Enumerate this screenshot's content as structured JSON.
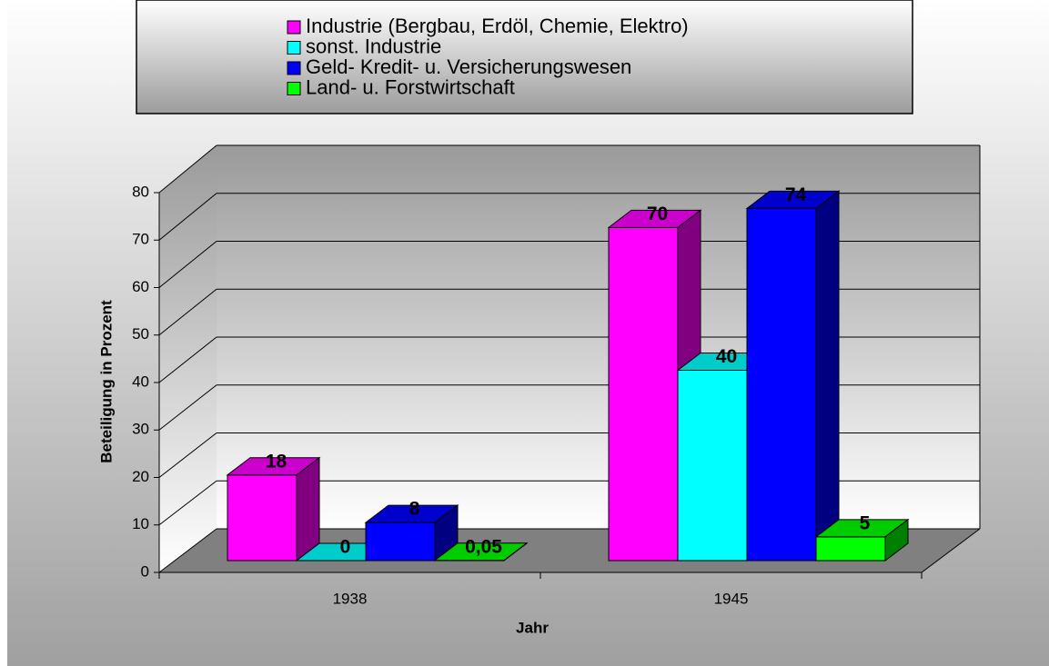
{
  "chart_data": {
    "type": "bar3d",
    "categories": [
      "1938",
      "1945"
    ],
    "series": [
      {
        "name": "Industrie (Bergbau, Erdöl, Chemie, Elektro)",
        "color": "#ff00ff",
        "values": [
          18,
          70
        ]
      },
      {
        "name": "sonst. Industrie",
        "color": "#00ffff",
        "values": [
          0,
          40
        ]
      },
      {
        "name": "Geld- Kredit- u. Versicherungswesen",
        "color": "#0000ff",
        "values": [
          8,
          74
        ]
      },
      {
        "name": "Land- u. Forstwirtschaft",
        "color": "#00ff00",
        "values": [
          0.05,
          5
        ],
        "value_labels": [
          "0,05",
          "5"
        ]
      }
    ],
    "ylim": [
      0,
      80
    ],
    "yticks": [
      0,
      10,
      20,
      30,
      40,
      50,
      60,
      70,
      80
    ],
    "y_label": "Beteiligung in Prozent",
    "x_label": "Jahr",
    "grid": true,
    "legend": "top"
  }
}
